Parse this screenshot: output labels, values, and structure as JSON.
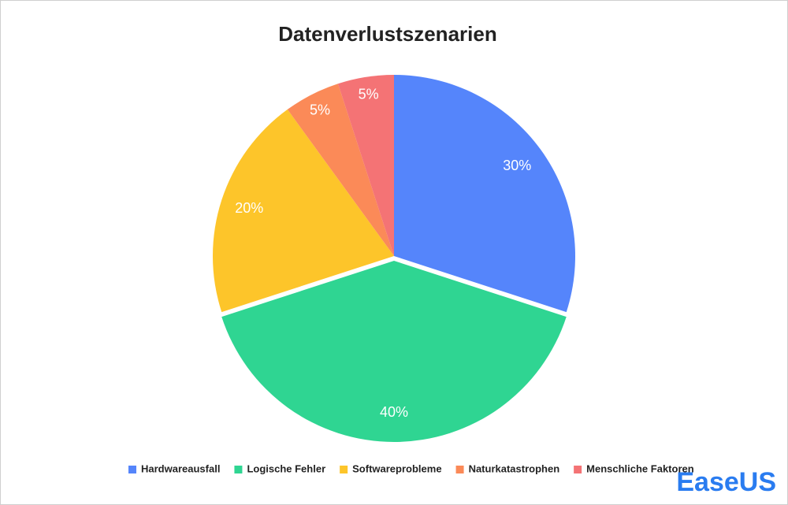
{
  "chart_data": {
    "type": "pie",
    "title": "Datenverlustszenarien",
    "categories": [
      "Hardwareausfall",
      "Logische Fehler",
      "Softwareprobleme",
      "Naturkatastrophen",
      "Menschliche Faktoren"
    ],
    "values": [
      30,
      40,
      20,
      5,
      5
    ],
    "value_labels": [
      "30%",
      "40%",
      "20%",
      "5%",
      "5%"
    ],
    "colors": [
      "#5585fb",
      "#2fd592",
      "#fdc52a",
      "#fb8a58",
      "#f47375"
    ],
    "legend": "bottom"
  },
  "watermark": "EaseUS"
}
